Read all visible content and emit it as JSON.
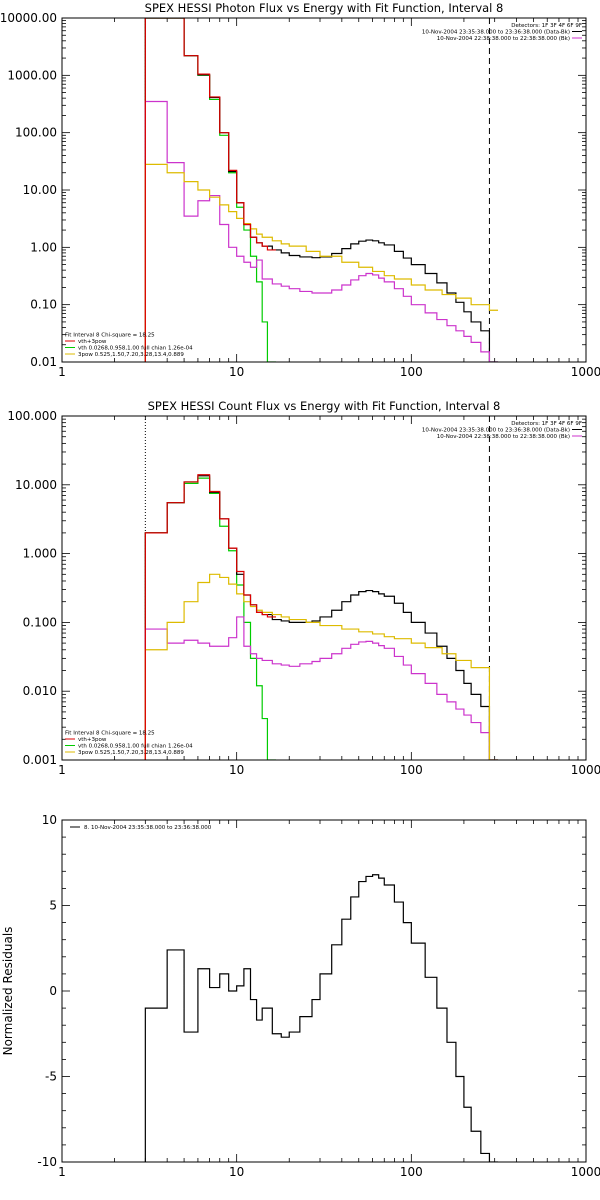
{
  "chart_data": [
    {
      "type": "line",
      "title": "SPEX HESSI Photon Flux vs Energy with Fit Function, Interval 8",
      "xlabel": "",
      "ylabel": "",
      "xscale": "log",
      "yscale": "log",
      "xlim": [
        1,
        1000
      ],
      "ylim": [
        0.01,
        10000
      ],
      "xticks": [
        1,
        10,
        100,
        1000
      ],
      "xtick_labels": [
        "1",
        "10",
        "100",
        "1000"
      ],
      "yticks": [
        0.01,
        0.1,
        1,
        10,
        100,
        1000,
        10000
      ],
      "ytick_labels": [
        "0.01",
        "0.10",
        "1.00",
        "10.00",
        "100.00",
        "1000.00",
        "10000.00"
      ],
      "vlines": [
        {
          "x": 3,
          "style": "dotted"
        },
        {
          "x": 280,
          "style": "dashed"
        }
      ],
      "legend_top": {
        "placement": "top-right",
        "entries": [
          {
            "text": "Detectors: 1F 3F 4F 6F 9F",
            "color": "#000000",
            "line": false
          },
          {
            "text": "10-Nov-2004 23:35:38.000 to 23:36:38.000 (Data-Bk)",
            "color": "#000000",
            "line": true
          },
          {
            "text": "10-Nov-2004 22:38:38.000 to 22:38:38.000 (Bk)",
            "color": "#cc33cc",
            "line": true
          }
        ]
      },
      "legend_bottom": {
        "placement": "bottom-left",
        "entries": [
          {
            "text": "Fit Interval 8   Chi-square = 18.25",
            "color": "#000000",
            "line": false
          },
          {
            "text": "vth+3pow",
            "color": "#dd0000",
            "line": true
          },
          {
            "text": "vth 0.0268,0.958,1.00  full chian 1.26e-04",
            "color": "#00cc00",
            "line": true
          },
          {
            "text": "3pow 0.525,1.50,7.20,3.28,13.4,0.889",
            "color": "#ddbb00",
            "line": true
          }
        ]
      },
      "series": [
        {
          "color": "#00cc00",
          "x": [
            3,
            4,
            5,
            6,
            7,
            8,
            9,
            10,
            11,
            12,
            13,
            14,
            15
          ],
          "y": [
            10000,
            10000,
            2200,
            1000,
            380,
            90,
            20,
            5,
            2,
            0.7,
            0.25,
            0.05,
            0.01
          ]
        },
        {
          "color": "#000000",
          "x": [
            3,
            4,
            5,
            6,
            7,
            8,
            9,
            10,
            11,
            12,
            13,
            14,
            16,
            18,
            20,
            23,
            27,
            30,
            35,
            40,
            45,
            50,
            55,
            60,
            65,
            70,
            80,
            90,
            100,
            120,
            140,
            160,
            180,
            200,
            220,
            250,
            280
          ],
          "y": [
            10000,
            10000,
            2200,
            1020,
            410,
            100,
            21,
            6,
            2.5,
            1.5,
            1.2,
            1.05,
            0.9,
            0.8,
            0.72,
            0.68,
            0.66,
            0.68,
            0.78,
            0.95,
            1.15,
            1.28,
            1.34,
            1.3,
            1.2,
            1.1,
            0.85,
            0.65,
            0.5,
            0.35,
            0.24,
            0.16,
            0.11,
            0.075,
            0.05,
            0.035,
            0.01
          ]
        },
        {
          "color": "#cc33cc",
          "x": [
            3,
            4,
            5,
            6,
            7,
            8,
            9,
            10,
            11,
            12,
            13,
            14,
            16,
            18,
            20,
            23,
            27,
            30,
            35,
            40,
            45,
            50,
            55,
            60,
            65,
            70,
            80,
            90,
            100,
            120,
            140,
            160,
            180,
            200,
            220,
            250,
            280
          ],
          "y": [
            350,
            30,
            3.5,
            6.5,
            8,
            2.5,
            1.0,
            0.7,
            0.55,
            0.45,
            0.6,
            0.28,
            0.23,
            0.21,
            0.19,
            0.17,
            0.16,
            0.16,
            0.18,
            0.22,
            0.27,
            0.32,
            0.35,
            0.33,
            0.29,
            0.25,
            0.19,
            0.14,
            0.1,
            0.072,
            0.055,
            0.043,
            0.035,
            0.028,
            0.022,
            0.015,
            0.01
          ]
        },
        {
          "color": "#ddbb00",
          "x": [
            3,
            4,
            5,
            6,
            7,
            8,
            9,
            10,
            11,
            12,
            13,
            14,
            16,
            18,
            20,
            25,
            30,
            40,
            50,
            60,
            70,
            80,
            100,
            120,
            150,
            180,
            220,
            280
          ],
          "y": [
            28,
            20,
            14,
            10,
            7.5,
            5.5,
            4.2,
            3.2,
            2.6,
            2.1,
            1.7,
            1.5,
            1.3,
            1.15,
            1.05,
            0.85,
            0.7,
            0.55,
            0.45,
            0.38,
            0.32,
            0.28,
            0.22,
            0.18,
            0.15,
            0.13,
            0.1,
            0.08
          ]
        },
        {
          "color": "#dd0000",
          "x": [
            3,
            4,
            5,
            6,
            7,
            8,
            9,
            10,
            11,
            12,
            13,
            14,
            15
          ],
          "y": [
            10000,
            10000,
            2200,
            1050,
            420,
            100,
            22,
            6,
            2.5,
            1.5,
            1.2,
            1.05,
            0.9
          ]
        }
      ]
    },
    {
      "type": "line",
      "title": "SPEX HESSI Count Flux vs Energy with Fit Function, Interval 8",
      "xlabel": "",
      "ylabel": "",
      "xscale": "log",
      "yscale": "log",
      "xlim": [
        1,
        1000
      ],
      "ylim": [
        0.001,
        100
      ],
      "xticks": [
        1,
        10,
        100,
        1000
      ],
      "xtick_labels": [
        "1",
        "10",
        "100",
        "1000"
      ],
      "yticks": [
        0.001,
        0.01,
        0.1,
        1,
        10,
        100
      ],
      "ytick_labels": [
        "0.001",
        "0.010",
        "0.100",
        "1.000",
        "10.000",
        "100.000"
      ],
      "vlines": [
        {
          "x": 3,
          "style": "dotted"
        },
        {
          "x": 280,
          "style": "dashed"
        }
      ],
      "legend_top": {
        "placement": "top-right",
        "entries": [
          {
            "text": "Detectors: 1F 3F 4F 6F 9F",
            "color": "#000000",
            "line": false
          },
          {
            "text": "10-Nov-2004 23:35:38.000 to 23:36:38.000 (Data-Bk)",
            "color": "#000000",
            "line": true
          },
          {
            "text": "10-Nov-2004 22:38:38.000 to 22:38:38.000 (Bk)",
            "color": "#cc33cc",
            "line": true
          }
        ]
      },
      "legend_bottom": {
        "placement": "bottom-left",
        "entries": [
          {
            "text": "Fit Interval 8   Chi-square = 18.25",
            "color": "#000000",
            "line": false
          },
          {
            "text": "vth+3pow",
            "color": "#dd0000",
            "line": true
          },
          {
            "text": "vth 0.0268,0.958,1.00  full chian 1.26e-04",
            "color": "#00cc00",
            "line": true
          },
          {
            "text": "3pow 0.525,1.50,7.20,3.28,13.4,0.889",
            "color": "#ddbb00",
            "line": true
          }
        ]
      },
      "series": [
        {
          "color": "#00cc00",
          "x": [
            3,
            4,
            5,
            6,
            7,
            8,
            9,
            10,
            11,
            12,
            13,
            14,
            15
          ],
          "y": [
            2.0,
            5.5,
            10.5,
            12.5,
            7.5,
            2.5,
            1.1,
            0.35,
            0.1,
            0.03,
            0.012,
            0.004,
            0.001
          ]
        },
        {
          "color": "#000000",
          "x": [
            3,
            4,
            5,
            6,
            7,
            8,
            9,
            10,
            11,
            12,
            13,
            14,
            16,
            18,
            20,
            23,
            27,
            30,
            35,
            40,
            45,
            50,
            55,
            60,
            65,
            70,
            80,
            90,
            100,
            120,
            140,
            160,
            180,
            200,
            220,
            250,
            280
          ],
          "y": [
            2.0,
            5.5,
            11,
            13.5,
            7.8,
            3.2,
            1.2,
            0.5,
            0.25,
            0.18,
            0.14,
            0.13,
            0.11,
            0.105,
            0.1,
            0.1,
            0.105,
            0.12,
            0.15,
            0.2,
            0.25,
            0.28,
            0.29,
            0.28,
            0.26,
            0.24,
            0.19,
            0.14,
            0.1,
            0.07,
            0.045,
            0.03,
            0.02,
            0.013,
            0.009,
            0.006,
            0.001
          ]
        },
        {
          "color": "#cc33cc",
          "x": [
            3,
            4,
            5,
            6,
            7,
            8,
            9,
            10,
            11,
            12,
            13,
            14,
            16,
            18,
            20,
            23,
            27,
            30,
            35,
            40,
            45,
            50,
            55,
            60,
            65,
            70,
            80,
            90,
            100,
            120,
            140,
            160,
            180,
            200,
            220,
            250,
            280
          ],
          "y": [
            0.08,
            0.05,
            0.055,
            0.05,
            0.045,
            0.045,
            0.06,
            0.12,
            0.045,
            0.035,
            0.03,
            0.028,
            0.025,
            0.024,
            0.023,
            0.025,
            0.027,
            0.03,
            0.035,
            0.042,
            0.048,
            0.052,
            0.053,
            0.05,
            0.046,
            0.042,
            0.032,
            0.024,
            0.018,
            0.013,
            0.009,
            0.007,
            0.0055,
            0.0045,
            0.0035,
            0.0025,
            0.001
          ]
        },
        {
          "color": "#ddbb00",
          "x": [
            3,
            4,
            5,
            6,
            7,
            8,
            9,
            10,
            11,
            12,
            13,
            14,
            16,
            18,
            20,
            25,
            30,
            40,
            50,
            60,
            70,
            80,
            100,
            120,
            150,
            180,
            220,
            280
          ],
          "y": [
            0.04,
            0.1,
            0.2,
            0.38,
            0.5,
            0.45,
            0.36,
            0.26,
            0.2,
            0.17,
            0.15,
            0.14,
            0.13,
            0.12,
            0.11,
            0.1,
            0.09,
            0.08,
            0.073,
            0.068,
            0.062,
            0.058,
            0.05,
            0.043,
            0.035,
            0.028,
            0.022,
            0.001
          ]
        },
        {
          "color": "#dd0000",
          "x": [
            3,
            4,
            5,
            6,
            7,
            8,
            9,
            10,
            11,
            12,
            13,
            14,
            15
          ],
          "y": [
            2.0,
            5.5,
            11,
            14,
            8,
            3.2,
            1.2,
            0.55,
            0.25,
            0.18,
            0.14,
            0.13,
            0.12
          ]
        }
      ]
    },
    {
      "type": "line",
      "title": "",
      "xlabel": "",
      "ylabel": "Normalized Residuals",
      "xscale": "log",
      "yscale": "linear",
      "xlim": [
        1,
        1000
      ],
      "ylim": [
        -10,
        10
      ],
      "xticks": [
        1,
        10,
        100,
        1000
      ],
      "xtick_labels": [
        "1",
        "10",
        "100",
        "1000"
      ],
      "yticks": [
        -10,
        -5,
        0,
        5,
        10
      ],
      "ytick_labels": [
        "-10",
        "-5",
        "0",
        "5",
        "10"
      ],
      "vlines": [],
      "legend_top": {
        "placement": "top-left",
        "entries": [
          {
            "text": "8. 10-Nov-2004 23:35:38.000 to 23:36:38.000",
            "color": "#000000",
            "line": true
          }
        ]
      },
      "legend_bottom": {
        "placement": "bottom-left",
        "entries": []
      },
      "series": [
        {
          "color": "#000000",
          "x": [
            3,
            4,
            5,
            6,
            7,
            8,
            9,
            10,
            11,
            12,
            13,
            14,
            16,
            18,
            20,
            23,
            27,
            30,
            35,
            40,
            45,
            50,
            55,
            60,
            65,
            70,
            80,
            90,
            100,
            120,
            140,
            160,
            180,
            200,
            220,
            250,
            280
          ],
          "y": [
            -1.0,
            2.4,
            -2.4,
            1.3,
            0.2,
            1.0,
            0.0,
            0.3,
            1.3,
            -0.5,
            -1.7,
            -1.0,
            -2.5,
            -2.7,
            -2.4,
            -1.5,
            -0.5,
            1.0,
            2.7,
            4.2,
            5.5,
            6.4,
            6.7,
            6.8,
            6.6,
            6.2,
            5.2,
            4.0,
            2.8,
            0.8,
            -1.0,
            -3.0,
            -5.0,
            -6.8,
            -8.2,
            -9.5,
            -10
          ]
        }
      ]
    }
  ]
}
